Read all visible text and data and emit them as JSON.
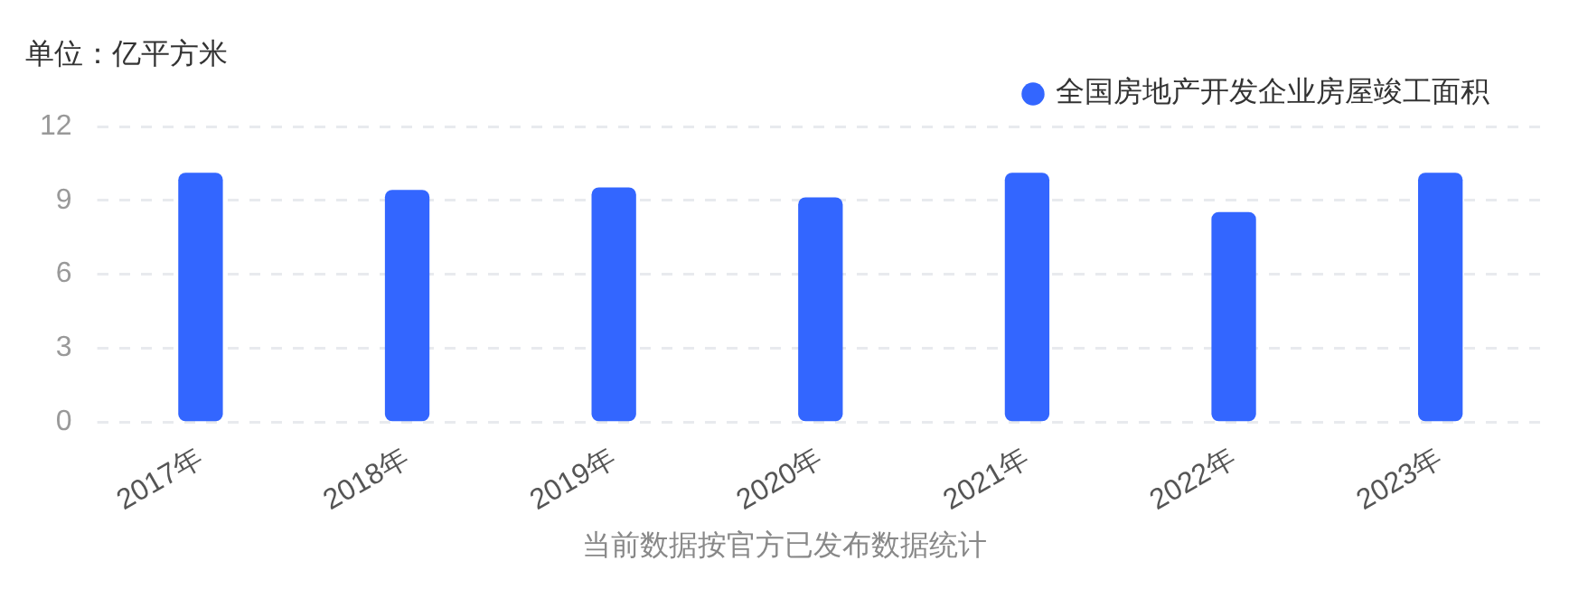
{
  "chart_data": {
    "type": "bar",
    "ylabel": "单位：亿平方米",
    "categories": [
      "2017年",
      "2018年",
      "2019年",
      "2020年",
      "2021年",
      "2022年",
      "2023年"
    ],
    "series": [
      {
        "name": "全国房地产开发企业房屋竣工面积",
        "color": "#3366ff",
        "values": [
          10.1,
          9.4,
          9.5,
          9.1,
          10.1,
          8.5,
          10.1
        ]
      }
    ],
    "ylim": [
      0,
      12
    ],
    "yticks": [
      0,
      3,
      6,
      9,
      12
    ],
    "grid": "y",
    "legend": "top right",
    "annotations": [
      "当前数据按官方已发布数据统计"
    ]
  }
}
